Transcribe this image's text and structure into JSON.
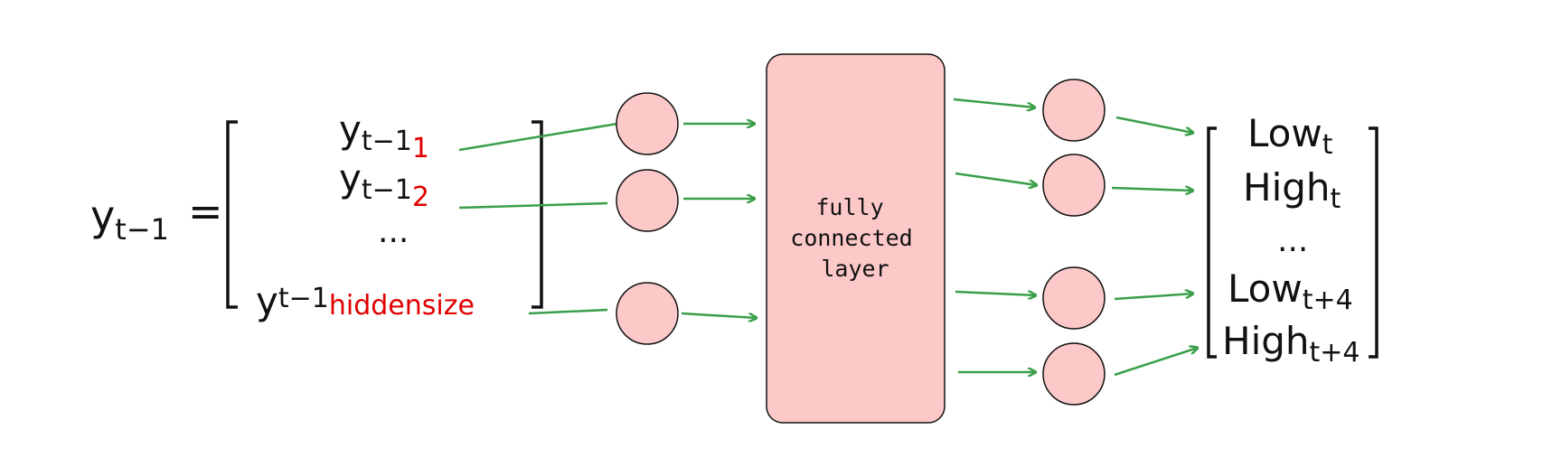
{
  "colors": {
    "node_fill": "#fcc8c8",
    "arrow": "#3a9f4a",
    "subscript_red": "#e00000",
    "text": "#111111"
  },
  "input_vector": {
    "lhs_base": "y",
    "lhs_sub": "t−1",
    "equals": "=",
    "rows": [
      {
        "base": "y",
        "sub": "t−1",
        "index": "1"
      },
      {
        "base": "y",
        "sub": "t−1",
        "index": "2"
      },
      {
        "ellipsis": "..."
      },
      {
        "base": "y",
        "sub": "t−1",
        "index": "hiddensize"
      }
    ]
  },
  "fc_layer": {
    "lines": [
      "fully",
      "connected",
      "layer"
    ]
  },
  "output_vector": {
    "rows": [
      {
        "base": "Low",
        "sub": "t"
      },
      {
        "base": "High",
        "sub": "t"
      },
      {
        "ellipsis": "..."
      },
      {
        "base": "Low",
        "sub": "t+4"
      },
      {
        "base": "High",
        "sub": "t+4"
      }
    ]
  }
}
